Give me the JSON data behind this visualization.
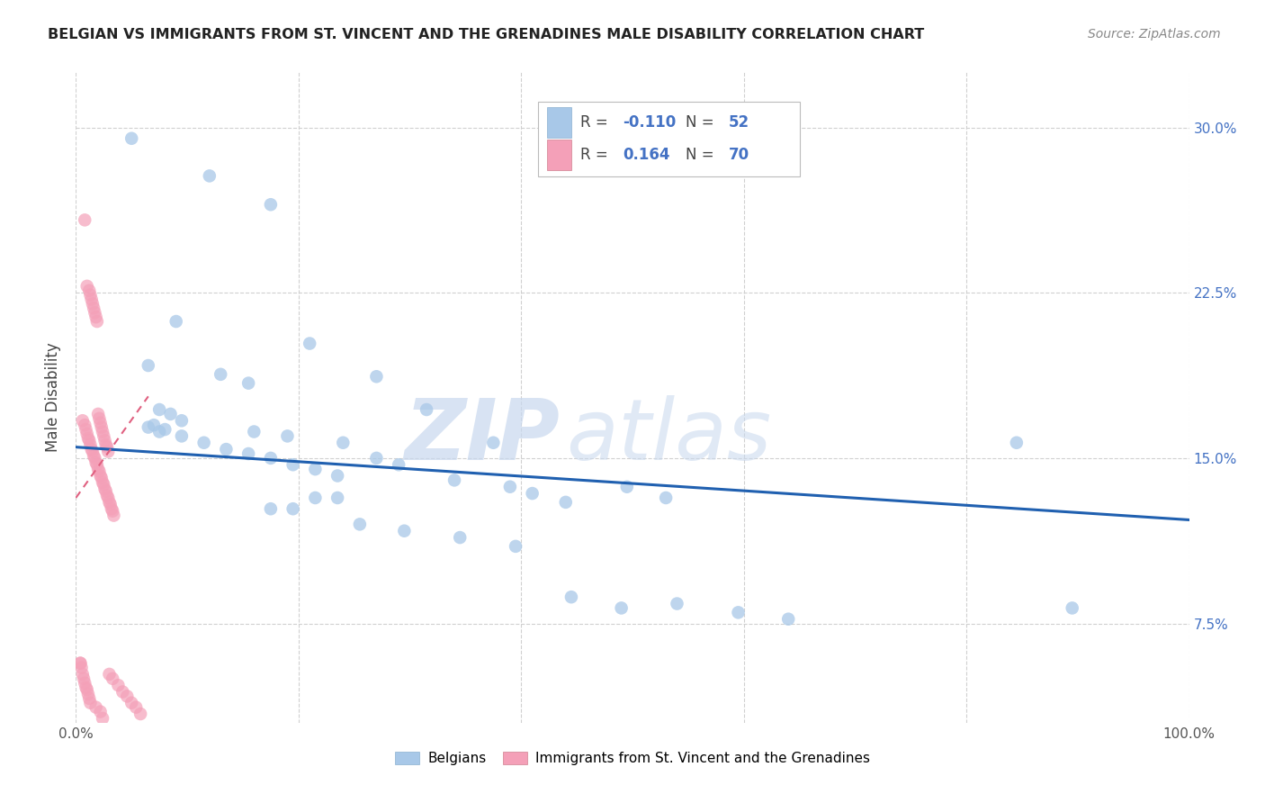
{
  "title": "BELGIAN VS IMMIGRANTS FROM ST. VINCENT AND THE GRENADINES MALE DISABILITY CORRELATION CHART",
  "source": "Source: ZipAtlas.com",
  "ylabel": "Male Disability",
  "xlim": [
    0.0,
    1.0
  ],
  "ylim": [
    0.03,
    0.325
  ],
  "yticks": [
    0.075,
    0.15,
    0.225,
    0.3
  ],
  "ytick_labels": [
    "7.5%",
    "15.0%",
    "22.5%",
    "30.0%"
  ],
  "xticks": [
    0.0,
    0.2,
    0.4,
    0.6,
    0.8,
    1.0
  ],
  "xtick_labels": [
    "0.0%",
    "",
    "",
    "",
    "",
    "100.0%"
  ],
  "blue_r": "-0.110",
  "blue_n": "52",
  "pink_r": "0.164",
  "pink_n": "70",
  "blue_scatter_x": [
    0.05,
    0.12,
    0.175,
    0.09,
    0.21,
    0.065,
    0.13,
    0.155,
    0.075,
    0.085,
    0.095,
    0.07,
    0.08,
    0.16,
    0.19,
    0.24,
    0.27,
    0.29,
    0.34,
    0.39,
    0.41,
    0.44,
    0.495,
    0.53,
    0.27,
    0.315,
    0.375,
    0.215,
    0.175,
    0.235,
    0.195,
    0.255,
    0.295,
    0.345,
    0.395,
    0.445,
    0.49,
    0.54,
    0.595,
    0.64,
    0.845,
    0.895,
    0.065,
    0.075,
    0.095,
    0.115,
    0.135,
    0.155,
    0.175,
    0.195,
    0.215,
    0.235
  ],
  "blue_scatter_y": [
    0.295,
    0.278,
    0.265,
    0.212,
    0.202,
    0.192,
    0.188,
    0.184,
    0.172,
    0.17,
    0.167,
    0.165,
    0.163,
    0.162,
    0.16,
    0.157,
    0.15,
    0.147,
    0.14,
    0.137,
    0.134,
    0.13,
    0.137,
    0.132,
    0.187,
    0.172,
    0.157,
    0.132,
    0.127,
    0.132,
    0.127,
    0.12,
    0.117,
    0.114,
    0.11,
    0.087,
    0.082,
    0.084,
    0.08,
    0.077,
    0.157,
    0.082,
    0.164,
    0.162,
    0.16,
    0.157,
    0.154,
    0.152,
    0.15,
    0.147,
    0.145,
    0.142
  ],
  "pink_scatter_x": [
    0.008,
    0.01,
    0.012,
    0.013,
    0.014,
    0.015,
    0.016,
    0.017,
    0.018,
    0.019,
    0.02,
    0.021,
    0.022,
    0.023,
    0.024,
    0.025,
    0.026,
    0.027,
    0.028,
    0.029,
    0.006,
    0.008,
    0.009,
    0.01,
    0.011,
    0.012,
    0.013,
    0.014,
    0.015,
    0.016,
    0.017,
    0.018,
    0.019,
    0.02,
    0.021,
    0.022,
    0.023,
    0.024,
    0.025,
    0.026,
    0.027,
    0.028,
    0.029,
    0.03,
    0.031,
    0.032,
    0.033,
    0.034,
    0.004,
    0.005,
    0.006,
    0.007,
    0.008,
    0.009,
    0.01,
    0.011,
    0.012,
    0.013,
    0.018,
    0.022,
    0.024,
    0.03,
    0.033,
    0.038,
    0.042,
    0.046,
    0.05,
    0.054,
    0.058,
    0.004
  ],
  "pink_scatter_y": [
    0.258,
    0.228,
    0.226,
    0.224,
    0.222,
    0.22,
    0.218,
    0.216,
    0.214,
    0.212,
    0.17,
    0.168,
    0.166,
    0.164,
    0.162,
    0.16,
    0.158,
    0.156,
    0.155,
    0.153,
    0.167,
    0.165,
    0.163,
    0.161,
    0.159,
    0.158,
    0.156,
    0.154,
    0.153,
    0.151,
    0.15,
    0.148,
    0.147,
    0.145,
    0.144,
    0.142,
    0.141,
    0.139,
    0.138,
    0.136,
    0.135,
    0.133,
    0.132,
    0.13,
    0.129,
    0.127,
    0.126,
    0.124,
    0.057,
    0.055,
    0.052,
    0.05,
    0.048,
    0.046,
    0.045,
    0.043,
    0.041,
    0.039,
    0.037,
    0.035,
    0.032,
    0.052,
    0.05,
    0.047,
    0.044,
    0.042,
    0.039,
    0.037,
    0.034,
    0.057
  ],
  "blue_line_x": [
    0.0,
    1.0
  ],
  "blue_line_y": [
    0.155,
    0.122
  ],
  "pink_line_x": [
    0.0,
    0.065
  ],
  "pink_line_y": [
    0.132,
    0.178
  ],
  "blue_color": "#a8c8e8",
  "pink_color": "#f4a0b8",
  "blue_line_color": "#2060b0",
  "pink_line_color": "#e06080",
  "watermark_zip": "ZIP",
  "watermark_atlas": "atlas",
  "background_color": "#ffffff",
  "grid_color": "#d0d0d0",
  "legend_blue_label": "R = -0.110   N = 52",
  "legend_pink_label": "R =  0.164   N = 70",
  "bottom_legend_blue": "Belgians",
  "bottom_legend_pink": "Immigrants from St. Vincent and the Grenadines"
}
